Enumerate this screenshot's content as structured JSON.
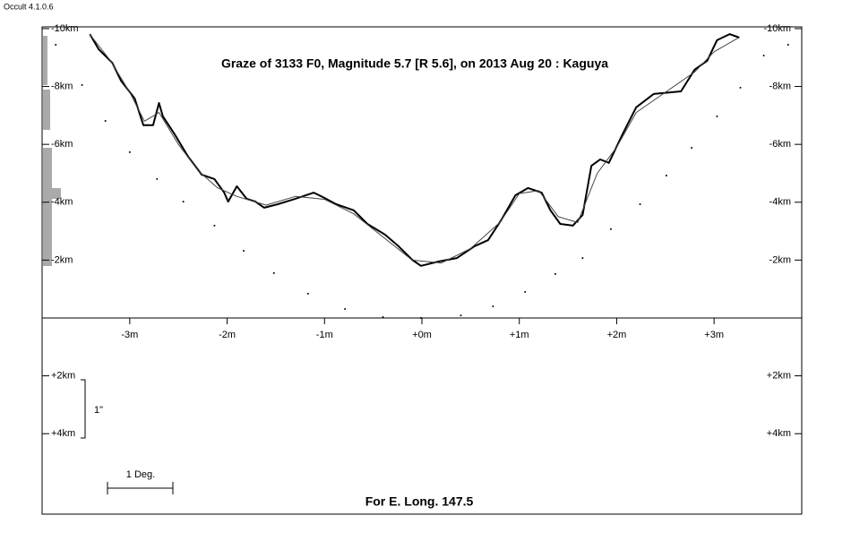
{
  "chart_data": {
    "type": "line",
    "app_label": "Occult 4.1.0.6",
    "title": "Graze of  3133 F0,  Magnitude 5.7 [R 5.6],  on 2013 Aug 20  :  Kaguya",
    "footer": "For E. Long. 147.5",
    "scale_vertical_label": "1\"",
    "scale_horizontal_label": "1 Deg.",
    "xlim": [
      -3.9,
      3.9
    ],
    "ylim": [
      -10.06,
      6.78
    ],
    "y_inverted": true,
    "xticks": [
      {
        "value": -3,
        "label": "-3m"
      },
      {
        "value": -2,
        "label": "-2m"
      },
      {
        "value": -1,
        "label": "-1m"
      },
      {
        "value": 0,
        "label": "+0m"
      },
      {
        "value": 1,
        "label": "+1m"
      },
      {
        "value": 2,
        "label": "+2m"
      },
      {
        "value": 3,
        "label": "+3m"
      }
    ],
    "yticks": [
      {
        "value": -10,
        "label": "-10km"
      },
      {
        "value": -8,
        "label": "-8km"
      },
      {
        "value": -6,
        "label": "-6km"
      },
      {
        "value": -4,
        "label": "-4km"
      },
      {
        "value": -2,
        "label": "-2km"
      },
      {
        "value": 2,
        "label": "+2km"
      },
      {
        "value": 4,
        "label": "+4km"
      }
    ],
    "series": [
      {
        "color": "#000000",
        "style": "thick",
        "x": [
          -3.41,
          -3.32,
          -3.18,
          -3.09,
          -2.95,
          -2.86,
          -2.76,
          -2.7,
          -2.66,
          -2.54,
          -2.4,
          -2.26,
          -2.13,
          -2.03,
          -1.99,
          -1.9,
          -1.8,
          -1.71,
          -1.62,
          -1.48,
          -1.3,
          -1.11,
          -1.02,
          -0.88,
          -0.7,
          -0.56,
          -0.38,
          -0.24,
          -0.1,
          -0.01,
          0.17,
          0.36,
          0.54,
          0.68,
          0.82,
          0.96,
          1.09,
          1.23,
          1.32,
          1.42,
          1.55,
          1.65,
          1.74,
          1.83,
          1.92,
          2.06,
          2.2,
          2.38,
          2.66,
          2.8,
          2.93,
          3.03,
          3.16,
          3.26
        ],
        "values": [
          -9.81,
          -9.29,
          -8.82,
          -8.2,
          -7.59,
          -6.66,
          -6.66,
          -7.43,
          -6.97,
          -6.35,
          -5.57,
          -4.95,
          -4.8,
          -4.33,
          -4.02,
          -4.55,
          -4.12,
          -4.02,
          -3.81,
          -3.93,
          -4.12,
          -4.33,
          -4.18,
          -3.93,
          -3.72,
          -3.25,
          -2.88,
          -2.48,
          -2.01,
          -1.8,
          -1.95,
          -2.07,
          -2.48,
          -2.69,
          -3.41,
          -4.24,
          -4.49,
          -4.33,
          -3.72,
          -3.25,
          -3.19,
          -3.56,
          -5.26,
          -5.48,
          -5.36,
          -6.35,
          -7.28,
          -7.74,
          -7.83,
          -8.58,
          -8.89,
          -9.6,
          -9.81,
          -9.69
        ]
      },
      {
        "color": "#444444",
        "style": "thin",
        "x": [
          -3.41,
          -3.2,
          -3.0,
          -2.85,
          -2.7,
          -2.5,
          -2.3,
          -2.1,
          -1.9,
          -1.6,
          -1.3,
          -1.0,
          -0.7,
          -0.4,
          -0.1,
          0.2,
          0.5,
          0.8,
          1.0,
          1.2,
          1.4,
          1.6,
          1.8,
          2.0,
          2.2,
          2.5,
          2.8,
          3.0,
          3.26
        ],
        "values": [
          -9.8,
          -8.9,
          -7.8,
          -6.8,
          -7.1,
          -6.0,
          -5.1,
          -4.5,
          -4.2,
          -3.9,
          -4.2,
          -4.1,
          -3.6,
          -2.8,
          -2.0,
          -1.9,
          -2.4,
          -3.3,
          -4.3,
          -4.4,
          -3.5,
          -3.3,
          -5.0,
          -5.9,
          -7.1,
          -7.8,
          -8.5,
          -9.2,
          -9.7
        ]
      },
      {
        "color": "#000000",
        "style": "dots",
        "x": [
          -3.76,
          -3.49,
          -3.25,
          -3.0,
          -2.72,
          -2.45,
          -2.13,
          -1.83,
          -1.52,
          -1.17,
          -0.79,
          -0.4,
          -0.01,
          0.4,
          0.73,
          1.06,
          1.37,
          1.65,
          1.94,
          2.24,
          2.51,
          2.77,
          3.03,
          3.27,
          3.51,
          3.76
        ],
        "values": [
          -9.44,
          -8.05,
          -6.81,
          -5.73,
          -4.8,
          -4.02,
          -3.19,
          -2.32,
          -1.55,
          -0.84,
          -0.31,
          -0.03,
          0,
          -0.09,
          -0.4,
          -0.9,
          -1.52,
          -2.07,
          -3.07,
          -3.93,
          -4.92,
          -5.88,
          -6.97,
          -7.96,
          -9.07,
          -9.44
        ]
      }
    ]
  }
}
